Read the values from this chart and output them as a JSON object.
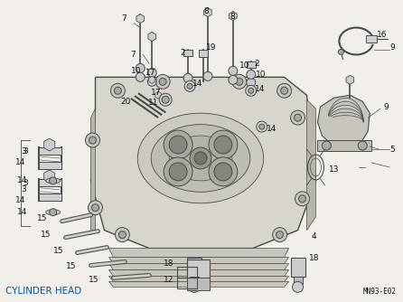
{
  "title": "CYLINDER HEAD",
  "subtitle": "MN93-E02",
  "bg_color": "#f2efea",
  "line_color": "#4a4a4a",
  "text_color": "#111111",
  "title_color": "#0055aa",
  "fig_width": 4.46,
  "fig_height": 3.34,
  "dpi": 100
}
